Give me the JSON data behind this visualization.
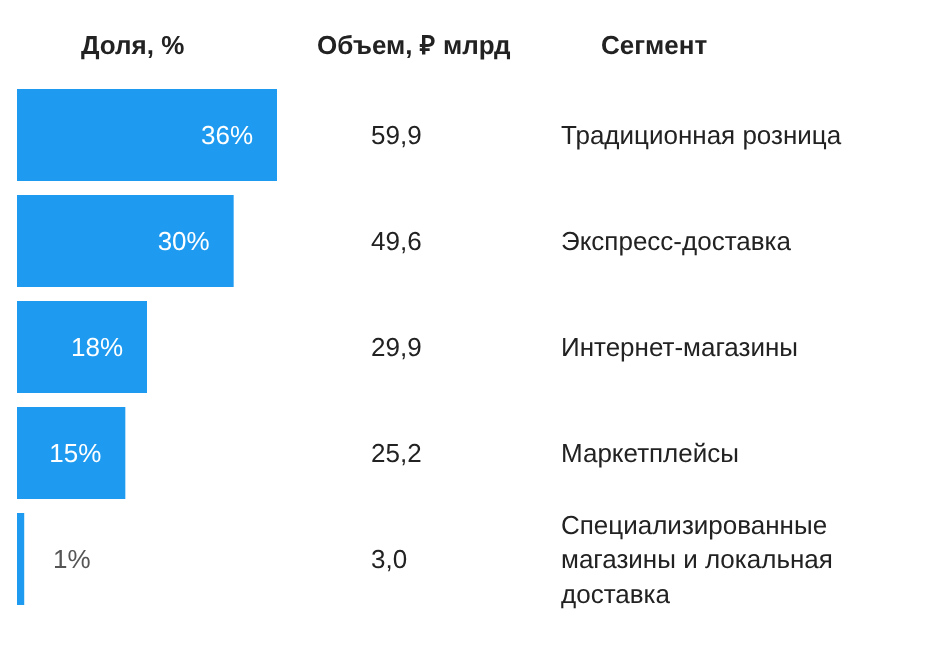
{
  "chart_data": {
    "type": "bar",
    "orientation": "horizontal",
    "xlabel": "Доля, %",
    "ylabel": "Сегмент",
    "categories": [
      "Традиционная розница",
      "Экспресс-доставка",
      "Интернет-магазины",
      "Маркетплейсы",
      "Специализированные магазины и локальная доставка"
    ],
    "values": [
      36,
      30,
      18,
      15,
      1
    ],
    "value_labels": [
      "36%",
      "30%",
      "18%",
      "15%",
      "1%"
    ],
    "color": "#1e9bf0",
    "annotations": [
      "Объем, ₽ млрд",
      "59,9",
      "49,6",
      "29,9",
      "25,2",
      "3,0"
    ]
  }
}
